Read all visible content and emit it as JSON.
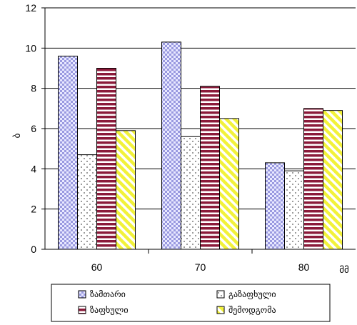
{
  "chart_data": {
    "type": "bar",
    "categories": [
      "60",
      "70",
      "80"
    ],
    "series": [
      {
        "name": "ზამთარი",
        "values": [
          9.6,
          10.3,
          4.3
        ],
        "color": "#c8c8f0",
        "pattern": "checker"
      },
      {
        "name": "გაზაფხული",
        "values": [
          4.7,
          5.6,
          3.9
        ],
        "color": "#ffffff",
        "pattern": "dots"
      },
      {
        "name": "ზაფხული",
        "values": [
          9.0,
          8.1,
          7.0
        ],
        "color": "#8b1a3a",
        "pattern": "hstripes"
      },
      {
        "name": "შემოდგომა",
        "values": [
          5.9,
          6.5,
          6.9
        ],
        "color": "#ffff66",
        "pattern": "diagonal"
      }
    ],
    "ylim": [
      0,
      12
    ],
    "yticks": [
      0,
      2,
      4,
      6,
      8,
      10,
      12
    ],
    "ylabel": "ბ",
    "xlabel": "მმ",
    "grid": "horizontal",
    "legend": "bottom"
  }
}
